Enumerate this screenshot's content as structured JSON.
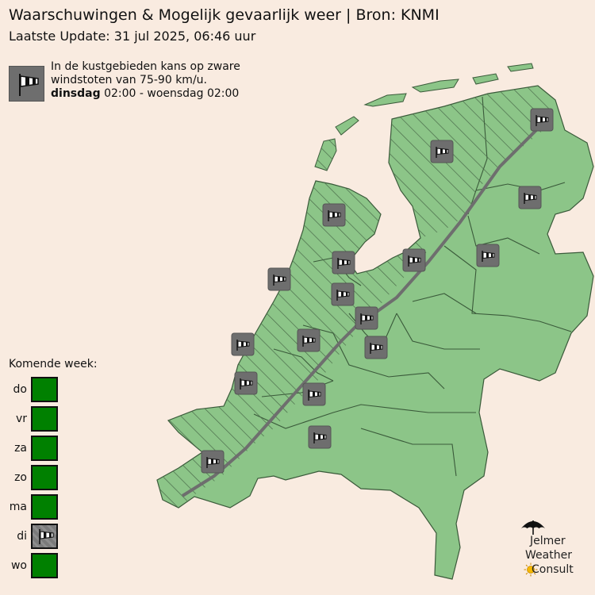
{
  "header": {
    "title": "Waarschuwingen & Mogelijk gevaarlijk weer  |  Bron: KNMI",
    "update": "Laatste Update: 31 jul 2025, 06:46 uur"
  },
  "legend": {
    "icon": "windsock-icon",
    "text_line1": "In de kustgebieden kans op zware",
    "text_line2": "windstoten van 75-90 km/u.",
    "day_bold": "dinsdag",
    "time_range": " 02:00 - woensdag 02:00"
  },
  "map": {
    "land_color": "#8cc588",
    "border_color": "#3a5a3a",
    "hatch_color": "#4a6b4a",
    "sea_color": "#f9ebe0",
    "marker_color": "#6e6e6e",
    "marker_icon": "windsock-icon"
  },
  "week": {
    "heading": "Komende week:",
    "days": [
      {
        "label": "do",
        "status": "none",
        "color": "#008000"
      },
      {
        "label": "vr",
        "status": "none",
        "color": "#008000"
      },
      {
        "label": "za",
        "status": "none",
        "color": "#008000"
      },
      {
        "label": "zo",
        "status": "none",
        "color": "#008000"
      },
      {
        "label": "ma",
        "status": "none",
        "color": "#008000"
      },
      {
        "label": "di",
        "status": "wind",
        "color": "#7a7a7a"
      },
      {
        "label": "wo",
        "status": "none",
        "color": "#008000"
      }
    ]
  },
  "brand": {
    "line1": "Jelmer",
    "line2": "Weather",
    "line3": "Consult",
    "icon": "umbrella-icon",
    "sun_icon": "sun-icon"
  }
}
